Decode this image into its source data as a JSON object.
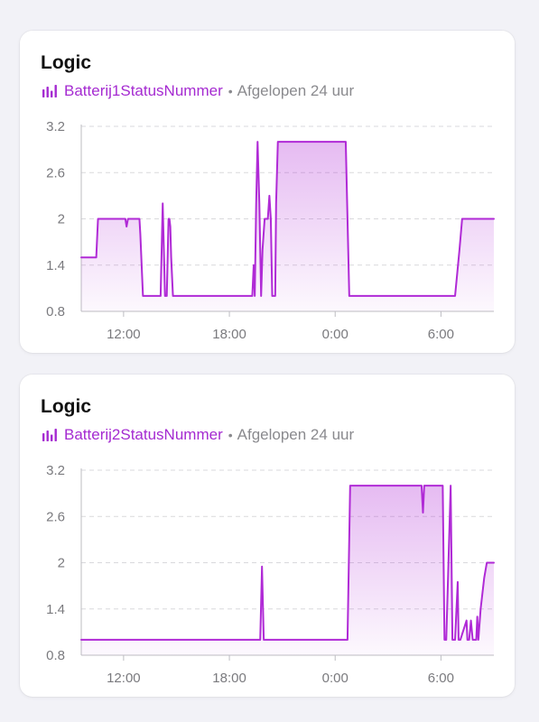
{
  "colors": {
    "accent": "#a52bd1",
    "line": "#b02ad6",
    "grid": "#d9d9dc",
    "axis_text": "#7a7a7e"
  },
  "cards": [
    {
      "title": "Logic",
      "entity_icon": "bar-chart-icon",
      "entity_name": "Batterij1StatusNummer",
      "separator": "•",
      "period": "Afgelopen 24 uur",
      "chart_data": {
        "type": "area",
        "x_unit": "hours",
        "x_range": [
          9.6,
          33.0
        ],
        "ylim": [
          0.8,
          3.2
        ],
        "yticks": [
          0.8,
          1.4,
          2,
          2.6,
          3.2
        ],
        "ytick_labels": [
          "0.8",
          "1.4",
          "2",
          "2.6",
          "3.2"
        ],
        "xticks": [
          12,
          18,
          24,
          30
        ],
        "xtick_labels": [
          "12:00",
          "18:00",
          "0:00",
          "6:00"
        ],
        "grid": true,
        "series": [
          {
            "x": [
              9.6,
              10.45,
              10.55,
              12.1,
              12.17,
              12.25,
              12.4,
              12.9,
              12.95,
              13.1,
              14.1,
              14.17,
              14.22,
              14.35,
              14.45,
              14.55,
              14.6,
              14.65,
              14.7,
              14.8,
              19.3,
              19.38,
              19.44,
              19.52,
              19.6,
              19.7,
              19.8,
              19.88,
              20.0,
              20.18,
              20.27,
              20.35,
              20.43,
              20.6,
              20.65,
              20.75,
              24.6,
              24.8,
              30.8,
              31.05,
              31.2,
              33.0
            ],
            "y": [
              1.5,
              1.5,
              2.0,
              2.0,
              1.9,
              2.0,
              2.0,
              2.0,
              1.8,
              1.0,
              1.0,
              1.7,
              2.2,
              1.0,
              1.0,
              2.0,
              2.0,
              1.9,
              1.5,
              1.0,
              1.0,
              1.4,
              1.0,
              2.2,
              3.0,
              2.2,
              1.0,
              1.6,
              2.0,
              2.0,
              2.3,
              2.0,
              1.0,
              1.0,
              2.2,
              3.0,
              3.0,
              1.0,
              1.0,
              1.6,
              2.0,
              2.0
            ]
          }
        ]
      }
    },
    {
      "title": "Logic",
      "entity_icon": "bar-chart-icon",
      "entity_name": "Batterij2StatusNummer",
      "separator": "•",
      "period": "Afgelopen 24 uur",
      "chart_data": {
        "type": "area",
        "x_unit": "hours",
        "x_range": [
          9.6,
          33.0
        ],
        "ylim": [
          0.8,
          3.2
        ],
        "yticks": [
          0.8,
          1.4,
          2,
          2.6,
          3.2
        ],
        "ytick_labels": [
          "0.8",
          "1.4",
          "2",
          "2.6",
          "3.2"
        ],
        "xticks": [
          12,
          18,
          24,
          30
        ],
        "xtick_labels": [
          "12:00",
          "18:00",
          "0:00",
          "6:00"
        ],
        "grid": true,
        "series": [
          {
            "x": [
              9.6,
              19.75,
              19.85,
              19.95,
              24.7,
              24.85,
              28.9,
              28.98,
              29.05,
              29.1,
              30.1,
              30.2,
              30.3,
              30.55,
              30.65,
              30.8,
              30.95,
              31.0,
              31.1,
              31.45,
              31.5,
              31.6,
              31.7,
              31.8,
              32.0,
              32.06,
              32.12,
              32.25,
              32.45,
              32.6,
              33.0
            ],
            "y": [
              1.0,
              1.0,
              1.95,
              1.0,
              1.0,
              3.0,
              3.0,
              2.65,
              3.0,
              3.0,
              3.0,
              1.0,
              1.0,
              3.0,
              1.0,
              1.0,
              1.75,
              1.0,
              1.0,
              1.25,
              1.0,
              1.0,
              1.25,
              1.0,
              1.0,
              1.3,
              1.0,
              1.4,
              1.8,
              2.0,
              2.0
            ]
          }
        ]
      }
    }
  ]
}
